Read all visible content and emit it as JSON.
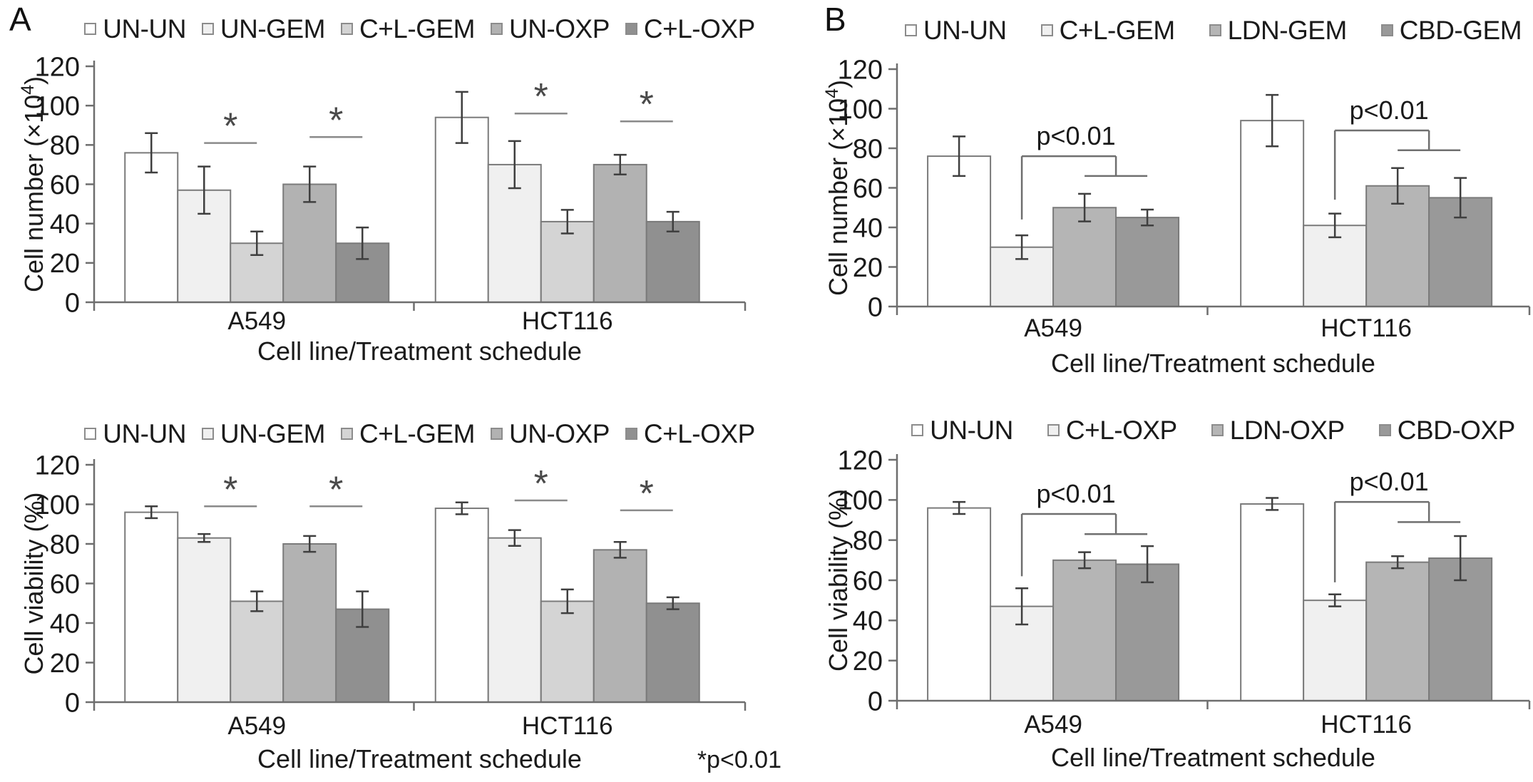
{
  "panels": {
    "a": {
      "label": "A"
    },
    "b": {
      "label": "B"
    }
  },
  "style": {
    "background": "#ffffff",
    "axis_color": "#6e6e6e",
    "bar_border_color": "#7a7a7a",
    "error_bar_color": "#3f3f3f",
    "significance_color": "#6f6f6f",
    "star_line_color": "#8a8a8a",
    "text_color": "#1a1a1a"
  },
  "chart_data": [
    {
      "id": "a-top",
      "panel": "A",
      "type": "bar",
      "ylabel": "Cell number (×10⁴)",
      "ylabel_main": "Cell number (×10",
      "ylabel_sup": "4",
      "ylabel_end": ")",
      "xlabel": "Cell line/Treatment schedule",
      "ylim": [
        0,
        120
      ],
      "ytick_step": 20,
      "grid": false,
      "legend_position": "top",
      "categories": [
        "A549",
        "HCT116"
      ],
      "series": [
        {
          "name": "UN-UN",
          "color": "#ffffff",
          "values": [
            76,
            94
          ],
          "errors": [
            10,
            13
          ]
        },
        {
          "name": "UN-GEM",
          "color": "#f0f0f0",
          "values": [
            57,
            70
          ],
          "errors": [
            12,
            12
          ]
        },
        {
          "name": "C+L-GEM",
          "color": "#d4d4d4",
          "values": [
            30,
            41
          ],
          "errors": [
            6,
            6
          ]
        },
        {
          "name": "UN-OXP",
          "color": "#b2b2b2",
          "values": [
            60,
            70
          ],
          "errors": [
            9,
            5
          ]
        },
        {
          "name": "C+L-OXP",
          "color": "#909090",
          "values": [
            30,
            41
          ],
          "errors": [
            8,
            5
          ]
        }
      ],
      "annotations": [
        {
          "kind": "star-line",
          "label": "*",
          "group": 0,
          "from": 1,
          "to": 2,
          "y": 81
        },
        {
          "kind": "star-line",
          "label": "*",
          "group": 0,
          "from": 3,
          "to": 4,
          "y": 84
        },
        {
          "kind": "star-line",
          "label": "*",
          "group": 1,
          "from": 1,
          "to": 2,
          "y": 96
        },
        {
          "kind": "star-line",
          "label": "*",
          "group": 1,
          "from": 3,
          "to": 4,
          "y": 92
        }
      ],
      "note": ""
    },
    {
      "id": "a-bottom",
      "panel": "A",
      "type": "bar",
      "ylabel": "Cell viability (%)",
      "ylabel_main": "Cell viability (%)",
      "ylabel_sup": "",
      "ylabel_end": "",
      "xlabel": "Cell line/Treatment schedule",
      "ylim": [
        0,
        120
      ],
      "ytick_step": 20,
      "grid": false,
      "legend_position": "top",
      "categories": [
        "A549",
        "HCT116"
      ],
      "series": [
        {
          "name": "UN-UN",
          "color": "#ffffff",
          "values": [
            96,
            98
          ],
          "errors": [
            3,
            3
          ]
        },
        {
          "name": "UN-GEM",
          "color": "#f0f0f0",
          "values": [
            83,
            83
          ],
          "errors": [
            2,
            4
          ]
        },
        {
          "name": "C+L-GEM",
          "color": "#d4d4d4",
          "values": [
            51,
            51
          ],
          "errors": [
            5,
            6
          ]
        },
        {
          "name": "UN-OXP",
          "color": "#b2b2b2",
          "values": [
            80,
            77
          ],
          "errors": [
            4,
            4
          ]
        },
        {
          "name": "C+L-OXP",
          "color": "#909090",
          "values": [
            47,
            50
          ],
          "errors": [
            9,
            3
          ]
        }
      ],
      "annotations": [
        {
          "kind": "star-line",
          "label": "*",
          "group": 0,
          "from": 1,
          "to": 2,
          "y": 99
        },
        {
          "kind": "star-line",
          "label": "*",
          "group": 0,
          "from": 3,
          "to": 4,
          "y": 99
        },
        {
          "kind": "star-line",
          "label": "*",
          "group": 1,
          "from": 1,
          "to": 2,
          "y": 102
        },
        {
          "kind": "star-line",
          "label": "*",
          "group": 1,
          "from": 3,
          "to": 4,
          "y": 97
        }
      ],
      "note": "*p<0.01"
    },
    {
      "id": "b-top",
      "panel": "B",
      "type": "bar",
      "ylabel": "Cell number (×10⁴)",
      "ylabel_main": "Cell number (×10",
      "ylabel_sup": "4",
      "ylabel_end": ")",
      "xlabel": "Cell line/Treatment schedule",
      "ylim": [
        0,
        120
      ],
      "ytick_step": 20,
      "grid": false,
      "legend_position": "top",
      "categories": [
        "A549",
        "HCT116"
      ],
      "series": [
        {
          "name": "UN-UN",
          "color": "#ffffff",
          "values": [
            76,
            94
          ],
          "errors": [
            10,
            13
          ]
        },
        {
          "name": "C+L-GEM",
          "color": "#f0f0f0",
          "values": [
            30,
            41
          ],
          "errors": [
            6,
            6
          ]
        },
        {
          "name": "LDN-GEM",
          "color": "#b5b5b5",
          "values": [
            50,
            61
          ],
          "errors": [
            7,
            9
          ]
        },
        {
          "name": "CBD-GEM",
          "color": "#999999",
          "values": [
            45,
            55
          ],
          "errors": [
            4,
            10
          ]
        }
      ],
      "annotations": [
        {
          "kind": "bracket",
          "label": "p<0.01",
          "group": 0,
          "from": 1,
          "group_from": 2,
          "group_to": 3,
          "y_main": 76,
          "y_group": 66,
          "y_leg": 44
        },
        {
          "kind": "bracket",
          "label": "p<0.01",
          "group": 1,
          "from": 1,
          "group_from": 2,
          "group_to": 3,
          "y_main": 89,
          "y_group": 79,
          "y_leg": 54
        }
      ],
      "note": ""
    },
    {
      "id": "b-bottom",
      "panel": "B",
      "type": "bar",
      "ylabel": "Cell viability (%)",
      "ylabel_main": "Cell viability (%)",
      "ylabel_sup": "",
      "ylabel_end": "",
      "xlabel": "Cell line/Treatment schedule",
      "ylim": [
        0,
        120
      ],
      "ytick_step": 20,
      "grid": false,
      "legend_position": "top",
      "categories": [
        "A549",
        "HCT116"
      ],
      "series": [
        {
          "name": "UN-UN",
          "color": "#ffffff",
          "values": [
            96,
            98
          ],
          "errors": [
            3,
            3
          ]
        },
        {
          "name": "C+L-OXP",
          "color": "#f0f0f0",
          "values": [
            47,
            50
          ],
          "errors": [
            9,
            3
          ]
        },
        {
          "name": "LDN-OXP",
          "color": "#b5b5b5",
          "values": [
            70,
            69
          ],
          "errors": [
            4,
            3
          ]
        },
        {
          "name": "CBD-OXP",
          "color": "#999999",
          "values": [
            68,
            71
          ],
          "errors": [
            9,
            11
          ]
        }
      ],
      "annotations": [
        {
          "kind": "bracket",
          "label": "p<0.01",
          "group": 0,
          "from": 1,
          "group_from": 2,
          "group_to": 3,
          "y_main": 93,
          "y_group": 83,
          "y_leg": 62
        },
        {
          "kind": "bracket",
          "label": "p<0.01",
          "group": 1,
          "from": 1,
          "group_from": 2,
          "group_to": 3,
          "y_main": 99,
          "y_group": 89,
          "y_leg": 59
        }
      ],
      "note": ""
    }
  ]
}
